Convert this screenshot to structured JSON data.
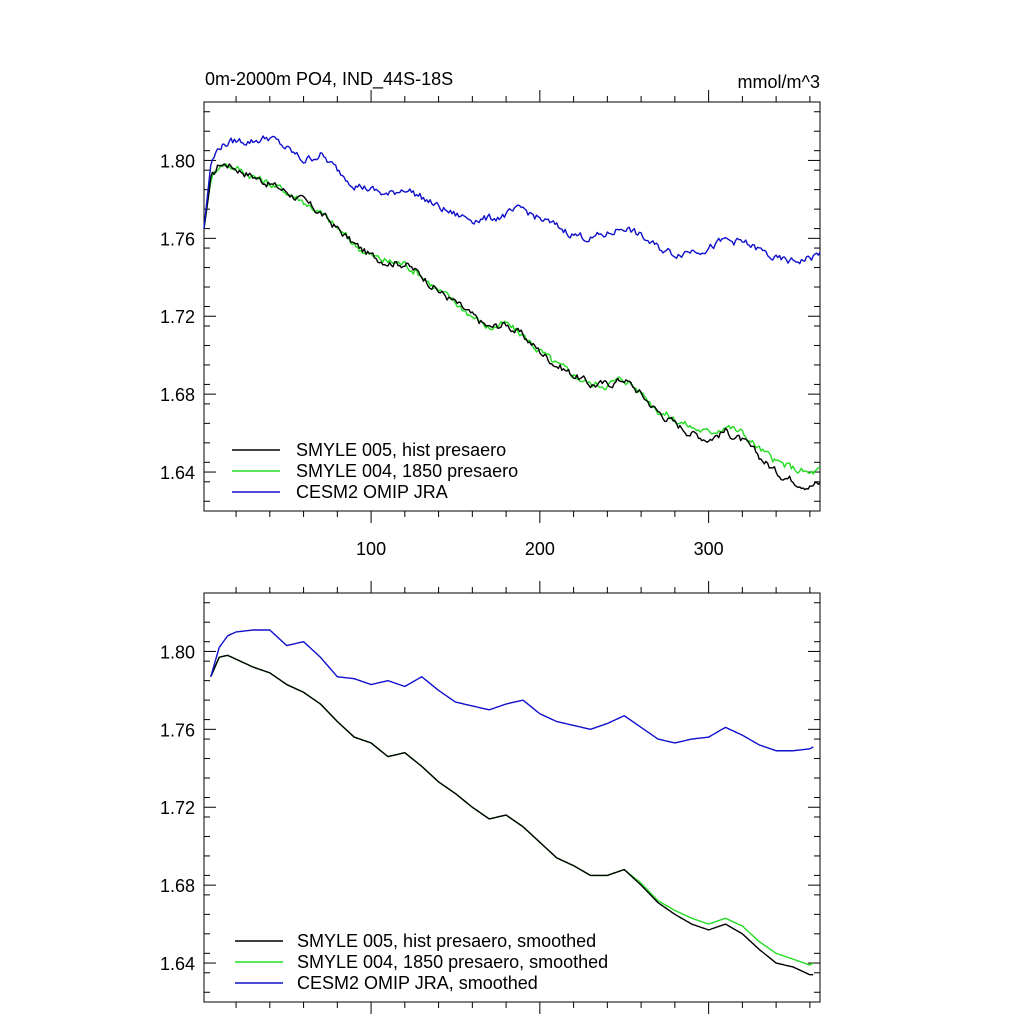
{
  "page": {
    "title_left": "0m-2000m PO4, IND_44S-18S",
    "title_right": "mmol/m^3"
  },
  "colors": {
    "smyle005": "#000000",
    "smyle004": "#22dd22",
    "omip": "#1010cc"
  },
  "chart_data": [
    {
      "type": "line",
      "title": "0m-2000m PO4, IND_44S-18S",
      "units": "mmol/m^3",
      "xlim": [
        1,
        366
      ],
      "ylim": [
        1.62,
        1.83
      ],
      "xticks": [
        100,
        200,
        300
      ],
      "yticks": [
        1.64,
        1.68,
        1.72,
        1.76,
        1.8
      ],
      "ytick_labels": [
        "1.64",
        "1.68",
        "1.72",
        "1.76",
        "1.80"
      ],
      "xtick_labels": [
        "100",
        "200",
        "300"
      ],
      "legend_position": "bottom-left",
      "noise": true,
      "series": [
        {
          "name": "SMYLE 005, hist presaero",
          "color_key": "smyle005",
          "x": [
            1,
            5,
            10,
            15,
            20,
            30,
            40,
            50,
            60,
            70,
            80,
            90,
            100,
            110,
            120,
            130,
            140,
            150,
            160,
            170,
            180,
            190,
            200,
            210,
            220,
            230,
            240,
            250,
            260,
            270,
            280,
            290,
            300,
            310,
            320,
            330,
            340,
            350,
            360,
            366
          ],
          "y": [
            1.765,
            1.79,
            1.798,
            1.798,
            1.796,
            1.792,
            1.788,
            1.784,
            1.779,
            1.773,
            1.765,
            1.757,
            1.751,
            1.748,
            1.747,
            1.741,
            1.733,
            1.727,
            1.72,
            1.714,
            1.716,
            1.71,
            1.702,
            1.695,
            1.69,
            1.685,
            1.685,
            1.688,
            1.68,
            1.671,
            1.665,
            1.66,
            1.657,
            1.661,
            1.656,
            1.648,
            1.64,
            1.636,
            1.633,
            1.634
          ]
        },
        {
          "name": "SMYLE 004, 1850 presaero",
          "color_key": "smyle004",
          "x": [
            1,
            5,
            10,
            15,
            20,
            30,
            40,
            50,
            60,
            70,
            80,
            90,
            100,
            110,
            120,
            130,
            140,
            150,
            160,
            170,
            180,
            190,
            200,
            210,
            220,
            230,
            240,
            250,
            260,
            270,
            280,
            290,
            300,
            310,
            320,
            330,
            340,
            350,
            360,
            366
          ],
          "y": [
            1.765,
            1.79,
            1.798,
            1.798,
            1.796,
            1.792,
            1.788,
            1.784,
            1.779,
            1.773,
            1.765,
            1.757,
            1.751,
            1.748,
            1.747,
            1.741,
            1.733,
            1.727,
            1.72,
            1.714,
            1.716,
            1.71,
            1.702,
            1.695,
            1.69,
            1.685,
            1.685,
            1.688,
            1.681,
            1.672,
            1.667,
            1.663,
            1.66,
            1.664,
            1.66,
            1.652,
            1.645,
            1.642,
            1.639,
            1.641
          ]
        },
        {
          "name": "CESM2 OMIP JRA",
          "color_key": "omip",
          "x": [
            1,
            5,
            10,
            15,
            20,
            30,
            40,
            50,
            60,
            70,
            80,
            90,
            100,
            110,
            120,
            130,
            140,
            150,
            160,
            170,
            180,
            190,
            200,
            210,
            220,
            230,
            240,
            250,
            260,
            270,
            280,
            290,
            300,
            310,
            320,
            330,
            340,
            350,
            360,
            366
          ],
          "y": [
            1.765,
            1.798,
            1.807,
            1.809,
            1.81,
            1.81,
            1.812,
            1.806,
            1.8,
            1.803,
            1.795,
            1.788,
            1.785,
            1.782,
            1.786,
            1.781,
            1.776,
            1.772,
            1.77,
            1.77,
            1.772,
            1.775,
            1.77,
            1.766,
            1.762,
            1.76,
            1.762,
            1.766,
            1.761,
            1.755,
            1.752,
            1.754,
            1.755,
            1.759,
            1.758,
            1.754,
            1.749,
            1.748,
            1.75,
            1.752
          ]
        }
      ]
    },
    {
      "type": "line",
      "xlim": [
        1,
        366
      ],
      "ylim": [
        1.62,
        1.83
      ],
      "xticks": [
        100,
        200,
        300
      ],
      "yticks": [
        1.64,
        1.68,
        1.72,
        1.76,
        1.8
      ],
      "ytick_labels": [
        "1.64",
        "1.68",
        "1.72",
        "1.76",
        "1.80"
      ],
      "legend_position": "bottom-left",
      "noise": false,
      "series": [
        {
          "name": "SMYLE 005, hist presaero, smoothed",
          "color_key": "smyle005",
          "x": [
            5,
            10,
            15,
            20,
            30,
            40,
            50,
            60,
            70,
            80,
            90,
            100,
            110,
            120,
            130,
            140,
            150,
            160,
            170,
            180,
            190,
            200,
            210,
            220,
            230,
            240,
            250,
            260,
            270,
            280,
            290,
            300,
            310,
            320,
            330,
            340,
            350,
            360,
            362
          ],
          "y": [
            1.787,
            1.797,
            1.798,
            1.796,
            1.792,
            1.789,
            1.783,
            1.779,
            1.773,
            1.764,
            1.756,
            1.753,
            1.746,
            1.748,
            1.741,
            1.733,
            1.727,
            1.72,
            1.714,
            1.716,
            1.71,
            1.702,
            1.694,
            1.69,
            1.685,
            1.685,
            1.688,
            1.68,
            1.671,
            1.665,
            1.66,
            1.657,
            1.66,
            1.655,
            1.647,
            1.64,
            1.638,
            1.634,
            1.634
          ]
        },
        {
          "name": "SMYLE 004, 1850 presaero, smoothed",
          "color_key": "smyle004",
          "x": [
            5,
            10,
            15,
            20,
            30,
            40,
            50,
            60,
            70,
            80,
            90,
            100,
            110,
            120,
            130,
            140,
            150,
            160,
            170,
            180,
            190,
            200,
            210,
            220,
            230,
            240,
            250,
            260,
            270,
            280,
            290,
            300,
            310,
            320,
            330,
            340,
            350,
            360,
            362
          ],
          "y": [
            1.787,
            1.797,
            1.798,
            1.796,
            1.792,
            1.789,
            1.783,
            1.779,
            1.773,
            1.764,
            1.756,
            1.753,
            1.746,
            1.748,
            1.741,
            1.733,
            1.727,
            1.72,
            1.714,
            1.716,
            1.71,
            1.702,
            1.694,
            1.69,
            1.685,
            1.685,
            1.688,
            1.681,
            1.672,
            1.667,
            1.663,
            1.66,
            1.663,
            1.659,
            1.651,
            1.645,
            1.642,
            1.639,
            1.64
          ]
        },
        {
          "name": "CESM2 OMIP JRA, smoothed",
          "color_key": "omip",
          "x": [
            5,
            10,
            15,
            20,
            30,
            40,
            50,
            60,
            70,
            80,
            90,
            100,
            110,
            120,
            130,
            140,
            150,
            160,
            170,
            180,
            190,
            200,
            210,
            220,
            230,
            240,
            250,
            260,
            270,
            280,
            290,
            300,
            310,
            320,
            330,
            340,
            350,
            360,
            362
          ],
          "y": [
            1.787,
            1.802,
            1.808,
            1.81,
            1.811,
            1.811,
            1.803,
            1.805,
            1.797,
            1.787,
            1.786,
            1.783,
            1.785,
            1.782,
            1.787,
            1.78,
            1.774,
            1.772,
            1.77,
            1.773,
            1.775,
            1.768,
            1.764,
            1.762,
            1.76,
            1.763,
            1.767,
            1.761,
            1.755,
            1.753,
            1.755,
            1.756,
            1.761,
            1.757,
            1.752,
            1.749,
            1.749,
            1.75,
            1.751
          ]
        }
      ]
    }
  ]
}
